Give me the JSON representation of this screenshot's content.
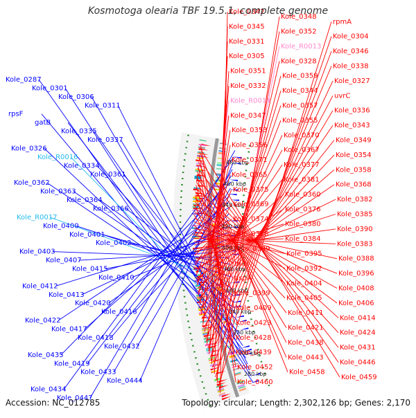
{
  "title": "Kosmotoga olearia TBF 19.5.1, complete genome",
  "footer": {
    "accession": "Accession: NC_012785",
    "summary": "Topology: circular; Length: 2,302,126 bp; Genes: 2,170"
  },
  "ticks": [
    "280 kbp",
    "300 kbp",
    "320 kbp",
    "340 kbp",
    "360 kbp",
    "380 kbp",
    "400 kbp",
    "420 kbp",
    "440 kbp",
    "460 kbp",
    "480 kbp"
  ],
  "left_labels": [
    {
      "text": "Kole_0287",
      "color": "blue"
    },
    {
      "text": "Kole_0301",
      "color": "blue"
    },
    {
      "text": "Kole_0306",
      "color": "blue"
    },
    {
      "text": "Kole_0311",
      "color": "blue"
    },
    {
      "text": "rpsF",
      "color": "blue"
    },
    {
      "text": "gatB",
      "color": "blue"
    },
    {
      "text": "Kole_0335",
      "color": "blue"
    },
    {
      "text": "Kole_0337",
      "color": "blue"
    },
    {
      "text": "Kole_0326",
      "color": "blue"
    },
    {
      "text": "Kole_R0016",
      "color": "cyan"
    },
    {
      "text": "Kole_0334",
      "color": "blue"
    },
    {
      "text": "Kole_0361",
      "color": "blue"
    },
    {
      "text": "Kole_0362",
      "color": "blue"
    },
    {
      "text": "Kole_0363",
      "color": "blue"
    },
    {
      "text": "Kole_0364",
      "color": "blue"
    },
    {
      "text": "Kole_0366",
      "color": "blue"
    },
    {
      "text": "Kole_R0017",
      "color": "cyan"
    },
    {
      "text": "Kole_0400",
      "color": "blue"
    },
    {
      "text": "Kole_0401",
      "color": "blue"
    },
    {
      "text": "Kole_0402",
      "color": "blue"
    },
    {
      "text": "Kole_0403",
      "color": "blue"
    },
    {
      "text": "Kole_0407",
      "color": "blue"
    },
    {
      "text": "Kole_0415",
      "color": "blue"
    },
    {
      "text": "Kole_0410",
      "color": "blue"
    },
    {
      "text": "Kole_0412",
      "color": "blue"
    },
    {
      "text": "Kole_0413",
      "color": "blue"
    },
    {
      "text": "Kole_0420",
      "color": "blue"
    },
    {
      "text": "Kole_0416",
      "color": "blue"
    },
    {
      "text": "Kole_0422",
      "color": "blue"
    },
    {
      "text": "Kole_0417",
      "color": "blue"
    },
    {
      "text": "Kole_0418",
      "color": "blue"
    },
    {
      "text": "Kole_0432",
      "color": "blue"
    },
    {
      "text": "Kole_0435",
      "color": "blue"
    },
    {
      "text": "Kole_0419",
      "color": "blue"
    },
    {
      "text": "Kole_0433",
      "color": "blue"
    },
    {
      "text": "Kole_0444",
      "color": "blue"
    },
    {
      "text": "Kole_0434",
      "color": "blue"
    },
    {
      "text": "Kole_0447",
      "color": "blue"
    }
  ],
  "right_labels": [
    {
      "text": "Kole_0342",
      "color": "red"
    },
    {
      "text": "Kole_0348",
      "color": "red"
    },
    {
      "text": "rpmA",
      "color": "red"
    },
    {
      "text": "Kole_0345",
      "color": "red"
    },
    {
      "text": "Kole_0352",
      "color": "red"
    },
    {
      "text": "Kole_0304",
      "color": "red"
    },
    {
      "text": "Kole_0331",
      "color": "red"
    },
    {
      "text": "Kole_R0013",
      "color": "pink"
    },
    {
      "text": "Kole_0346",
      "color": "red"
    },
    {
      "text": "Kole_0305",
      "color": "red"
    },
    {
      "text": "Kole_0328",
      "color": "red"
    },
    {
      "text": "Kole_0338",
      "color": "red"
    },
    {
      "text": "Kole_0351",
      "color": "red"
    },
    {
      "text": "Kole_0359",
      "color": "red"
    },
    {
      "text": "Kole_0327",
      "color": "red"
    },
    {
      "text": "Kole_0332",
      "color": "red"
    },
    {
      "text": "Kole_0344",
      "color": "red"
    },
    {
      "text": "uvrC",
      "color": "red"
    },
    {
      "text": "Kole_R0014",
      "color": "pink"
    },
    {
      "text": "Kole_0357",
      "color": "red"
    },
    {
      "text": "Kole_0336",
      "color": "red"
    },
    {
      "text": "Kole_0347",
      "color": "red"
    },
    {
      "text": "Kole_0355",
      "color": "red"
    },
    {
      "text": "Kole_0343",
      "color": "red"
    },
    {
      "text": "Kole_0353",
      "color": "red"
    },
    {
      "text": "Kole_0370",
      "color": "red"
    },
    {
      "text": "Kole_0349",
      "color": "red"
    },
    {
      "text": "Kole_0356",
      "color": "red"
    },
    {
      "text": "Kole_0367",
      "color": "red"
    },
    {
      "text": "Kole_0354",
      "color": "red"
    },
    {
      "text": "Kole_0371",
      "color": "red"
    },
    {
      "text": "Kole_0377",
      "color": "red"
    },
    {
      "text": "Kole_0358",
      "color": "red"
    },
    {
      "text": "Kole_0365",
      "color": "red"
    },
    {
      "text": "Kole_0381",
      "color": "red"
    },
    {
      "text": "Kole_0368",
      "color": "red"
    },
    {
      "text": "Kole_0375",
      "color": "red"
    },
    {
      "text": "Kole_0360",
      "color": "red"
    },
    {
      "text": "Kole_0382",
      "color": "red"
    },
    {
      "text": "Kole_0369",
      "color": "red"
    },
    {
      "text": "Kole_0376",
      "color": "red"
    },
    {
      "text": "Kole_0385",
      "color": "red"
    },
    {
      "text": "Kole_0374",
      "color": "red"
    },
    {
      "text": "Kole_0380",
      "color": "red"
    },
    {
      "text": "Kole_0390",
      "color": "red"
    },
    {
      "text": "Kole_0378",
      "color": "red"
    },
    {
      "text": "Kole_0384",
      "color": "red"
    },
    {
      "text": "Kole_0383",
      "color": "red"
    },
    {
      "text": "Kole_0389",
      "color": "red"
    },
    {
      "text": "Kole_0395",
      "color": "red"
    },
    {
      "text": "Kole_0388",
      "color": "red"
    },
    {
      "text": "thiH",
      "color": "red"
    },
    {
      "text": "Kole_0392",
      "color": "red"
    },
    {
      "text": "Kole_0396",
      "color": "red"
    },
    {
      "text": "aspA",
      "color": "red"
    },
    {
      "text": "Kole_0404",
      "color": "red"
    },
    {
      "text": "Kole_0408",
      "color": "red"
    },
    {
      "text": "Kole_0399",
      "color": "red"
    },
    {
      "text": "Kole_0405",
      "color": "red"
    },
    {
      "text": "Kole_0406",
      "color": "red"
    },
    {
      "text": "Kole_0409",
      "color": "red"
    },
    {
      "text": "Kole_0411",
      "color": "red"
    },
    {
      "text": "Kole_0414",
      "color": "red"
    },
    {
      "text": "Kole_0423",
      "color": "red"
    },
    {
      "text": "Kole_0421",
      "color": "red"
    },
    {
      "text": "Kole_0424",
      "color": "red"
    },
    {
      "text": "Kole_0428",
      "color": "red"
    },
    {
      "text": "Kole_0438",
      "color": "red"
    },
    {
      "text": "Kole_0431",
      "color": "red"
    },
    {
      "text": "Kole_0439",
      "color": "red"
    },
    {
      "text": "Kole_0443",
      "color": "red"
    },
    {
      "text": "Kole_0446",
      "color": "red"
    },
    {
      "text": "Kole_0452",
      "color": "red"
    },
    {
      "text": "Kole_0458",
      "color": "red"
    },
    {
      "text": "Kole_0459",
      "color": "red"
    },
    {
      "text": "Kole_0460",
      "color": "red"
    }
  ],
  "colors": {
    "forward": "#ff0000",
    "reverse": "#0000ff",
    "rna_forward": "#ff88cc",
    "rna_reverse": "#22bbee",
    "backbone": "#999999",
    "dotted_track": "#2e8b2e"
  }
}
